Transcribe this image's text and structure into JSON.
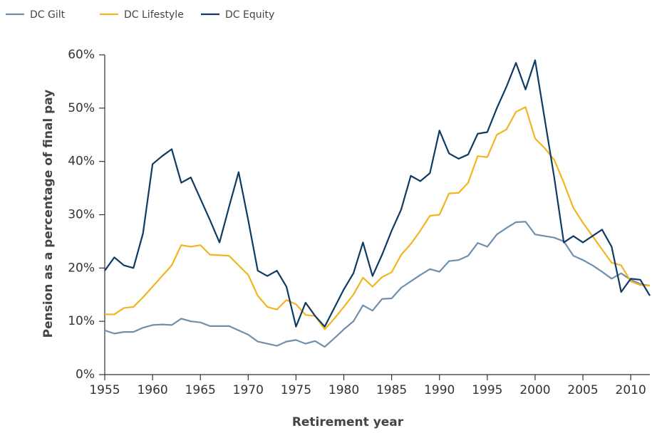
{
  "chart_data": {
    "type": "line",
    "x_label": "Retirement year",
    "y_label": "Pension as a percentage of final pay",
    "xlim": [
      1955,
      2012
    ],
    "xticks": [
      1955,
      1960,
      1965,
      1970,
      1975,
      1980,
      1985,
      1990,
      1995,
      2000,
      2005,
      2010
    ],
    "ylim": [
      0,
      60
    ],
    "yticks": [
      {
        "value": 0,
        "label": "0%"
      },
      {
        "value": 10,
        "label": "10%"
      },
      {
        "value": 20,
        "label": "20%"
      },
      {
        "value": 30,
        "label": "30%"
      },
      {
        "value": 40,
        "label": "40%"
      },
      {
        "value": 50,
        "label": "50%"
      },
      {
        "value": 60,
        "label": "60%"
      }
    ],
    "legend": "top-left",
    "x": [
      1955,
      1956,
      1957,
      1958,
      1959,
      1960,
      1961,
      1962,
      1963,
      1964,
      1965,
      1966,
      1967,
      1968,
      1969,
      1970,
      1971,
      1972,
      1973,
      1974,
      1975,
      1976,
      1977,
      1978,
      1979,
      1980,
      1981,
      1982,
      1983,
      1984,
      1985,
      1986,
      1987,
      1988,
      1989,
      1990,
      1991,
      1992,
      1993,
      1994,
      1995,
      1996,
      1997,
      1998,
      1999,
      2000,
      2001,
      2002,
      2003,
      2004,
      2005,
      2006,
      2007,
      2008,
      2009,
      2010,
      2011,
      2012
    ],
    "series": [
      {
        "name": "DC Gilt",
        "color": "#6f8fad",
        "values": [
          8.3,
          7.7,
          8,
          8,
          8.8,
          9.3,
          9.4,
          9.3,
          10.5,
          10,
          9.8,
          9.1,
          9.1,
          9.1,
          8.3,
          7.5,
          6.2,
          5.8,
          5.4,
          6.2,
          6.5,
          5.8,
          6.3,
          5.2,
          6.8,
          8.5,
          10,
          13,
          12,
          14.2,
          14.3,
          16.3,
          17.5,
          18.7,
          19.8,
          19.3,
          21.3,
          21.5,
          22.3,
          24.7,
          24,
          26.3,
          27.5,
          28.6,
          28.7,
          26.3,
          26,
          25.7,
          25,
          22.3,
          21.5,
          20.5,
          19.3,
          18,
          19,
          17.8,
          17,
          16.7
        ]
      },
      {
        "name": "DC Lifestyle",
        "color": "#f2b51f",
        "values": [
          11.3,
          11.3,
          12.5,
          12.7,
          14.5,
          16.5,
          18.5,
          20.5,
          24.3,
          24,
          24.3,
          22.5,
          22.4,
          22.3,
          20.5,
          18.7,
          14.8,
          12.7,
          12.2,
          14,
          13.2,
          11.2,
          11,
          8.5,
          10.5,
          12.7,
          15,
          18.2,
          16.5,
          18.3,
          19.2,
          22.5,
          24.5,
          27,
          29.8,
          30,
          34,
          34.1,
          36,
          41,
          40.8,
          45,
          46,
          49.3,
          50.2,
          44.3,
          42.5,
          40.3,
          36,
          31.3,
          28.5,
          26,
          23.5,
          21,
          20.5,
          17.5,
          16.8,
          16.7
        ]
      },
      {
        "name": "DC Equity",
        "color": "#0f3a63",
        "values": [
          19.5,
          22,
          20.5,
          20,
          26.5,
          39.5,
          41,
          42.3,
          36,
          37,
          33,
          29,
          24.8,
          31.5,
          38,
          29,
          19.5,
          18.5,
          19.5,
          16.5,
          9,
          13.5,
          11,
          9,
          12.5,
          16,
          19,
          24.8,
          18.5,
          22.5,
          27,
          31,
          37.3,
          36.3,
          37.8,
          45.8,
          41.5,
          40.5,
          41.3,
          45.2,
          45.5,
          50,
          54,
          58.5,
          53.5,
          59,
          48,
          37,
          24.8,
          26,
          24.8,
          26,
          27.2,
          24,
          15.5,
          18,
          17.8,
          14.8
        ]
      }
    ]
  }
}
